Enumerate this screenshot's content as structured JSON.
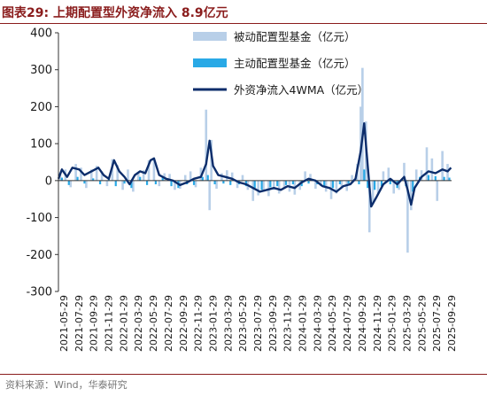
{
  "figure": {
    "title": "图表29:  上期配置型外资净流入 8.9亿元",
    "source": "资料来源：Wind，华泰研究"
  },
  "colors": {
    "passive": "#b8cfe8",
    "active": "#29a9e6",
    "line": "#0c2d6b",
    "title": "#8a1c1c"
  },
  "chart_data": {
    "type": "bar",
    "subtype": "weekly bars with overlaid line",
    "unit": "亿元",
    "ylim": [
      -300,
      400
    ],
    "yticks": [
      -300,
      -200,
      -100,
      0,
      100,
      200,
      300,
      400
    ],
    "grid": false,
    "legend_position": "top-right",
    "x_start": "2021-05-29",
    "x_end": "2025-09-29",
    "x_tick_labels": [
      "2021-05-29",
      "2021-07-29",
      "2021-09-29",
      "2021-11-29",
      "2022-01-29",
      "2022-03-29",
      "2022-05-29",
      "2022-07-29",
      "2022-09-29",
      "2022-11-29",
      "2023-01-29",
      "2023-03-29",
      "2023-05-29",
      "2023-07-29",
      "2023-09-29",
      "2023-11-29",
      "2024-01-29",
      "2024-03-29",
      "2024-05-29",
      "2024-07-29",
      "2024-09-29",
      "2024-11-29",
      "2025-01-29",
      "2025-03-29",
      "2025-05-29",
      "2025-07-29",
      "2025-09-29"
    ],
    "series": [
      {
        "name": "被动配置型基金（亿元）",
        "kind": "bar",
        "points": [
          {
            "date": "2021-06-05",
            "value": 22
          },
          {
            "date": "2021-06-26",
            "value": 30
          },
          {
            "date": "2021-07-17",
            "value": -18
          },
          {
            "date": "2021-08-07",
            "value": 45
          },
          {
            "date": "2021-08-28",
            "value": 35
          },
          {
            "date": "2021-09-18",
            "value": -20
          },
          {
            "date": "2021-10-09",
            "value": 30
          },
          {
            "date": "2021-10-30",
            "value": 40
          },
          {
            "date": "2021-11-20",
            "value": 25
          },
          {
            "date": "2021-12-11",
            "value": -15
          },
          {
            "date": "2022-01-01",
            "value": 58
          },
          {
            "date": "2022-01-22",
            "value": 42
          },
          {
            "date": "2022-02-12",
            "value": -25
          },
          {
            "date": "2022-03-05",
            "value": 30
          },
          {
            "date": "2022-03-26",
            "value": -30
          },
          {
            "date": "2022-04-16",
            "value": 20
          },
          {
            "date": "2022-05-07",
            "value": 28
          },
          {
            "date": "2022-05-28",
            "value": 55
          },
          {
            "date": "2022-06-18",
            "value": 62
          },
          {
            "date": "2022-07-09",
            "value": -15
          },
          {
            "date": "2022-07-30",
            "value": 20
          },
          {
            "date": "2022-08-20",
            "value": 18
          },
          {
            "date": "2022-09-10",
            "value": -25
          },
          {
            "date": "2022-10-01",
            "value": -22
          },
          {
            "date": "2022-10-22",
            "value": 15
          },
          {
            "date": "2022-11-12",
            "value": 25
          },
          {
            "date": "2022-12-03",
            "value": -18
          },
          {
            "date": "2022-12-24",
            "value": 35
          },
          {
            "date": "2023-01-14",
            "value": 192
          },
          {
            "date": "2023-01-28",
            "value": -80
          },
          {
            "date": "2023-02-04",
            "value": 110
          },
          {
            "date": "2023-02-25",
            "value": -22
          },
          {
            "date": "2023-03-18",
            "value": 20
          },
          {
            "date": "2023-04-08",
            "value": 28
          },
          {
            "date": "2023-04-29",
            "value": 22
          },
          {
            "date": "2023-05-20",
            "value": -20
          },
          {
            "date": "2023-06-10",
            "value": 15
          },
          {
            "date": "2023-07-01",
            "value": -25
          },
          {
            "date": "2023-07-22",
            "value": -55
          },
          {
            "date": "2023-08-12",
            "value": -40
          },
          {
            "date": "2023-09-02",
            "value": -30
          },
          {
            "date": "2023-09-23",
            "value": -42
          },
          {
            "date": "2023-10-14",
            "value": -25
          },
          {
            "date": "2023-11-04",
            "value": -35
          },
          {
            "date": "2023-11-25",
            "value": -20
          },
          {
            "date": "2023-12-16",
            "value": -30
          },
          {
            "date": "2024-01-06",
            "value": -38
          },
          {
            "date": "2024-01-27",
            "value": -25
          },
          {
            "date": "2024-02-17",
            "value": 25
          },
          {
            "date": "2024-03-09",
            "value": 18
          },
          {
            "date": "2024-03-30",
            "value": -22
          },
          {
            "date": "2024-04-20",
            "value": -15
          },
          {
            "date": "2024-05-11",
            "value": -30
          },
          {
            "date": "2024-06-01",
            "value": -50
          },
          {
            "date": "2024-06-22",
            "value": -35
          },
          {
            "date": "2024-07-13",
            "value": -20
          },
          {
            "date": "2024-08-03",
            "value": -28
          },
          {
            "date": "2024-08-24",
            "value": 15
          },
          {
            "date": "2024-09-14",
            "value": 45
          },
          {
            "date": "2024-09-28",
            "value": 200
          },
          {
            "date": "2024-10-05",
            "value": 305
          },
          {
            "date": "2024-10-19",
            "value": 160
          },
          {
            "date": "2024-11-02",
            "value": -140
          },
          {
            "date": "2024-11-16",
            "value": -60
          },
          {
            "date": "2024-12-07",
            "value": -35
          },
          {
            "date": "2024-12-28",
            "value": 25
          },
          {
            "date": "2025-01-18",
            "value": 35
          },
          {
            "date": "2025-02-08",
            "value": -35
          },
          {
            "date": "2025-03-01",
            "value": -25
          },
          {
            "date": "2025-03-22",
            "value": 48
          },
          {
            "date": "2025-04-05",
            "value": -195
          },
          {
            "date": "2025-04-19",
            "value": -80
          },
          {
            "date": "2025-05-10",
            "value": 30
          },
          {
            "date": "2025-05-31",
            "value": 28
          },
          {
            "date": "2025-06-21",
            "value": 90
          },
          {
            "date": "2025-07-12",
            "value": 60
          },
          {
            "date": "2025-08-02",
            "value": -55
          },
          {
            "date": "2025-08-23",
            "value": 80
          },
          {
            "date": "2025-09-13",
            "value": 45
          }
        ]
      },
      {
        "name": "主动配置型基金（亿元）",
        "kind": "bar",
        "points": [
          {
            "date": "2021-06-12",
            "value": 8
          },
          {
            "date": "2021-07-10",
            "value": -12
          },
          {
            "date": "2021-08-14",
            "value": 10
          },
          {
            "date": "2021-09-11",
            "value": -8
          },
          {
            "date": "2021-10-16",
            "value": 6
          },
          {
            "date": "2021-11-13",
            "value": -10
          },
          {
            "date": "2021-12-18",
            "value": 8
          },
          {
            "date": "2022-01-15",
            "value": -15
          },
          {
            "date": "2022-02-19",
            "value": -8
          },
          {
            "date": "2022-03-19",
            "value": -20
          },
          {
            "date": "2022-04-23",
            "value": 10
          },
          {
            "date": "2022-05-21",
            "value": -12
          },
          {
            "date": "2022-06-25",
            "value": -10
          },
          {
            "date": "2022-07-23",
            "value": 8
          },
          {
            "date": "2022-08-27",
            "value": -15
          },
          {
            "date": "2022-09-24",
            "value": -20
          },
          {
            "date": "2022-10-29",
            "value": -10
          },
          {
            "date": "2022-11-26",
            "value": -12
          },
          {
            "date": "2022-12-31",
            "value": 10
          },
          {
            "date": "2023-01-21",
            "value": 15
          },
          {
            "date": "2023-02-18",
            "value": -10
          },
          {
            "date": "2023-03-25",
            "value": -8
          },
          {
            "date": "2023-04-22",
            "value": -12
          },
          {
            "date": "2023-05-27",
            "value": -10
          },
          {
            "date": "2023-06-24",
            "value": -15
          },
          {
            "date": "2023-07-29",
            "value": -20
          },
          {
            "date": "2023-08-26",
            "value": -25
          },
          {
            "date": "2023-09-30",
            "value": -18
          },
          {
            "date": "2023-10-28",
            "value": -15
          },
          {
            "date": "2023-12-02",
            "value": -12
          },
          {
            "date": "2023-12-30",
            "value": -10
          },
          {
            "date": "2024-02-03",
            "value": -15
          },
          {
            "date": "2024-03-02",
            "value": -8
          },
          {
            "date": "2024-04-06",
            "value": -10
          },
          {
            "date": "2024-05-04",
            "value": -15
          },
          {
            "date": "2024-06-08",
            "value": -20
          },
          {
            "date": "2024-07-06",
            "value": -10
          },
          {
            "date": "2024-08-10",
            "value": -8
          },
          {
            "date": "2024-09-21",
            "value": -10
          },
          {
            "date": "2024-10-12",
            "value": 30
          },
          {
            "date": "2024-10-26",
            "value": -20
          },
          {
            "date": "2024-11-23",
            "value": -25
          },
          {
            "date": "2024-12-21",
            "value": -15
          },
          {
            "date": "2025-01-25",
            "value": -10
          },
          {
            "date": "2025-02-22",
            "value": -20
          },
          {
            "date": "2025-03-29",
            "value": -15
          },
          {
            "date": "2025-04-26",
            "value": -30
          },
          {
            "date": "2025-05-24",
            "value": 10
          },
          {
            "date": "2025-06-28",
            "value": 15
          },
          {
            "date": "2025-07-26",
            "value": 12
          },
          {
            "date": "2025-08-30",
            "value": 10
          },
          {
            "date": "2025-09-20",
            "value": 8
          }
        ]
      },
      {
        "name": "外资净流入4WMA（亿元）",
        "kind": "line",
        "points": [
          {
            "date": "2021-05-29",
            "value": 5
          },
          {
            "date": "2021-06-12",
            "value": 30
          },
          {
            "date": "2021-07-03",
            "value": 10
          },
          {
            "date": "2021-07-24",
            "value": 35
          },
          {
            "date": "2021-08-21",
            "value": 30
          },
          {
            "date": "2021-09-11",
            "value": 15
          },
          {
            "date": "2021-10-09",
            "value": 25
          },
          {
            "date": "2021-11-06",
            "value": 35
          },
          {
            "date": "2021-11-27",
            "value": 15
          },
          {
            "date": "2021-12-18",
            "value": 5
          },
          {
            "date": "2022-01-08",
            "value": 55
          },
          {
            "date": "2022-01-29",
            "value": 25
          },
          {
            "date": "2022-02-19",
            "value": 10
          },
          {
            "date": "2022-03-12",
            "value": -10
          },
          {
            "date": "2022-04-02",
            "value": 15
          },
          {
            "date": "2022-04-23",
            "value": 25
          },
          {
            "date": "2022-05-14",
            "value": 20
          },
          {
            "date": "2022-06-04",
            "value": 55
          },
          {
            "date": "2022-06-18",
            "value": 60
          },
          {
            "date": "2022-07-09",
            "value": 15
          },
          {
            "date": "2022-08-06",
            "value": 5
          },
          {
            "date": "2022-09-03",
            "value": 0
          },
          {
            "date": "2022-10-01",
            "value": -12
          },
          {
            "date": "2022-10-29",
            "value": -5
          },
          {
            "date": "2022-11-26",
            "value": 5
          },
          {
            "date": "2022-12-24",
            "value": 10
          },
          {
            "date": "2023-01-14",
            "value": 45
          },
          {
            "date": "2023-01-28",
            "value": 108
          },
          {
            "date": "2023-02-11",
            "value": 40
          },
          {
            "date": "2023-03-04",
            "value": 15
          },
          {
            "date": "2023-04-01",
            "value": 10
          },
          {
            "date": "2023-04-29",
            "value": 5
          },
          {
            "date": "2023-05-27",
            "value": -5
          },
          {
            "date": "2023-06-24",
            "value": -10
          },
          {
            "date": "2023-07-22",
            "value": -20
          },
          {
            "date": "2023-08-19",
            "value": -30
          },
          {
            "date": "2023-09-16",
            "value": -25
          },
          {
            "date": "2023-10-14",
            "value": -20
          },
          {
            "date": "2023-11-11",
            "value": -25
          },
          {
            "date": "2023-12-09",
            "value": -15
          },
          {
            "date": "2024-01-06",
            "value": -20
          },
          {
            "date": "2024-02-03",
            "value": -5
          },
          {
            "date": "2024-03-02",
            "value": 5
          },
          {
            "date": "2024-03-30",
            "value": 0
          },
          {
            "date": "2024-04-27",
            "value": -15
          },
          {
            "date": "2024-05-25",
            "value": -20
          },
          {
            "date": "2024-06-22",
            "value": -30
          },
          {
            "date": "2024-07-20",
            "value": -15
          },
          {
            "date": "2024-08-17",
            "value": -10
          },
          {
            "date": "2024-09-07",
            "value": 5
          },
          {
            "date": "2024-09-28",
            "value": 80
          },
          {
            "date": "2024-10-12",
            "value": 155
          },
          {
            "date": "2024-10-26",
            "value": 40
          },
          {
            "date": "2024-11-09",
            "value": -70
          },
          {
            "date": "2024-11-30",
            "value": -45
          },
          {
            "date": "2024-12-28",
            "value": -10
          },
          {
            "date": "2025-01-25",
            "value": 5
          },
          {
            "date": "2025-02-22",
            "value": -10
          },
          {
            "date": "2025-03-22",
            "value": 10
          },
          {
            "date": "2025-04-05",
            "value": -25
          },
          {
            "date": "2025-04-19",
            "value": -65
          },
          {
            "date": "2025-05-03",
            "value": -20
          },
          {
            "date": "2025-05-31",
            "value": 10
          },
          {
            "date": "2025-06-28",
            "value": 25
          },
          {
            "date": "2025-07-26",
            "value": 20
          },
          {
            "date": "2025-08-23",
            "value": 30
          },
          {
            "date": "2025-09-13",
            "value": 25
          },
          {
            "date": "2025-09-27",
            "value": 35
          }
        ]
      }
    ]
  }
}
